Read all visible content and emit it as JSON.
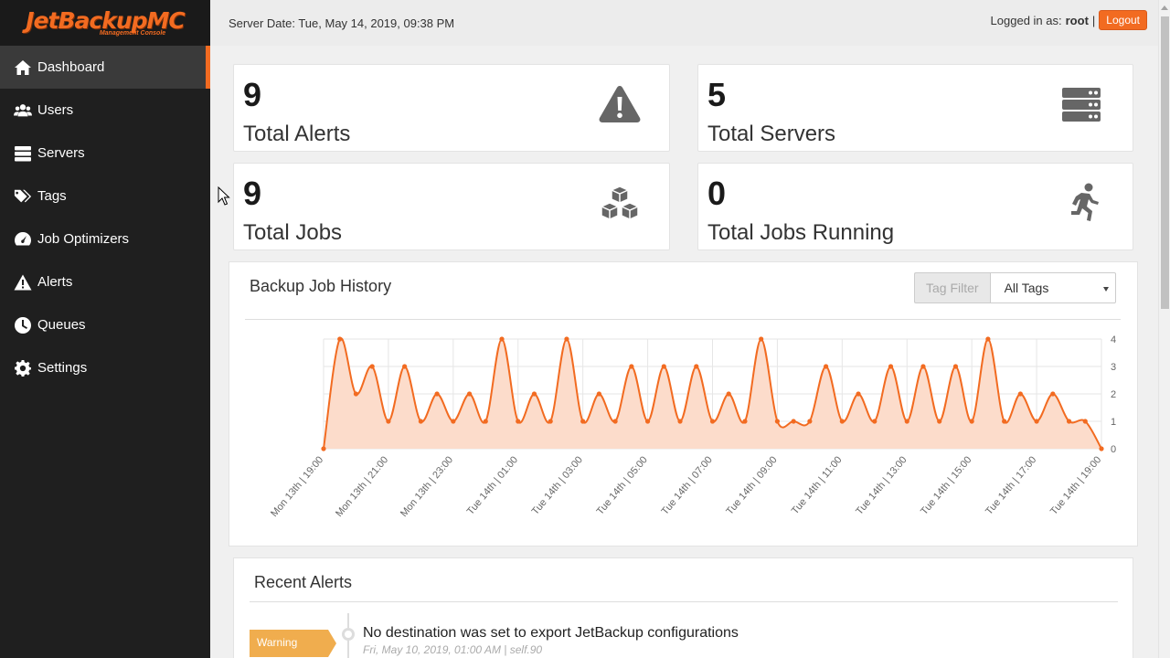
{
  "app": {
    "logo_main": "JetBackupMC",
    "logo_sub": "Management Console",
    "brand_color": "#f26b21"
  },
  "topbar": {
    "server_date": "Server Date: Tue, May 14, 2019, 09:38 PM",
    "logged_in_label": "Logged in as:",
    "username": "root",
    "separator": "|",
    "logout_label": "Logout"
  },
  "sidebar": {
    "items": [
      {
        "label": "Dashboard",
        "icon": "home-icon",
        "active": true
      },
      {
        "label": "Users",
        "icon": "users-icon"
      },
      {
        "label": "Servers",
        "icon": "servers-icon"
      },
      {
        "label": "Tags",
        "icon": "tags-icon"
      },
      {
        "label": "Job Optimizers",
        "icon": "dashboard-gauge-icon"
      },
      {
        "label": "Alerts",
        "icon": "warning-icon"
      },
      {
        "label": "Queues",
        "icon": "clock-icon"
      },
      {
        "label": "Settings",
        "icon": "gear-icon"
      }
    ]
  },
  "stats": [
    {
      "value": "9",
      "label": "Total Alerts",
      "icon": "warning-icon"
    },
    {
      "value": "5",
      "label": "Total Servers",
      "icon": "server-stack-icon"
    },
    {
      "value": "9",
      "label": "Total Jobs",
      "icon": "cubes-icon"
    },
    {
      "value": "0",
      "label": "Total Jobs Running",
      "icon": "running-icon"
    }
  ],
  "chart_panel": {
    "title": "Backup Job History",
    "tag_filter_label": "Tag Filter",
    "tag_filter_value": "All Tags"
  },
  "chart_data": {
    "type": "area",
    "title": "Backup Job History",
    "xlabel": "",
    "ylabel": "",
    "ylim": [
      0,
      4
    ],
    "y_ticks": [
      "0",
      "1",
      "2",
      "3",
      "4"
    ],
    "y_axis_side": "right",
    "grid": true,
    "line_color": "#f26b21",
    "fill_color": "#fcdccb",
    "x_tick_labels": [
      "Mon 13th | 19:00",
      "Mon 13th | 21:00",
      "Mon 13th | 23:00",
      "Tue 14th | 01:00",
      "Tue 14th | 03:00",
      "Tue 14th | 05:00",
      "Tue 14th | 07:00",
      "Tue 14th | 09:00",
      "Tue 14th | 11:00",
      "Tue 14th | 13:00",
      "Tue 14th | 15:00",
      "Tue 14th | 17:00",
      "Tue 14th | 19:00"
    ],
    "values": [
      0,
      4,
      2,
      3,
      1,
      3,
      1,
      2,
      1,
      2,
      1,
      4,
      1,
      2,
      1,
      4,
      1,
      2,
      1,
      3,
      1,
      3,
      1,
      3,
      1,
      2,
      1,
      4,
      1,
      1,
      1,
      3,
      1,
      2,
      1,
      3,
      1,
      3,
      1,
      3,
      1,
      4,
      1,
      2,
      1,
      2,
      1,
      1,
      0
    ]
  },
  "alerts_panel": {
    "title": "Recent Alerts",
    "items": [
      {
        "level": "Warning",
        "message": "No destination was set to export JetBackup configurations",
        "meta": "Fri, May 10, 2019, 01:00 AM | self.90",
        "color": "#f0ad4e"
      }
    ]
  }
}
